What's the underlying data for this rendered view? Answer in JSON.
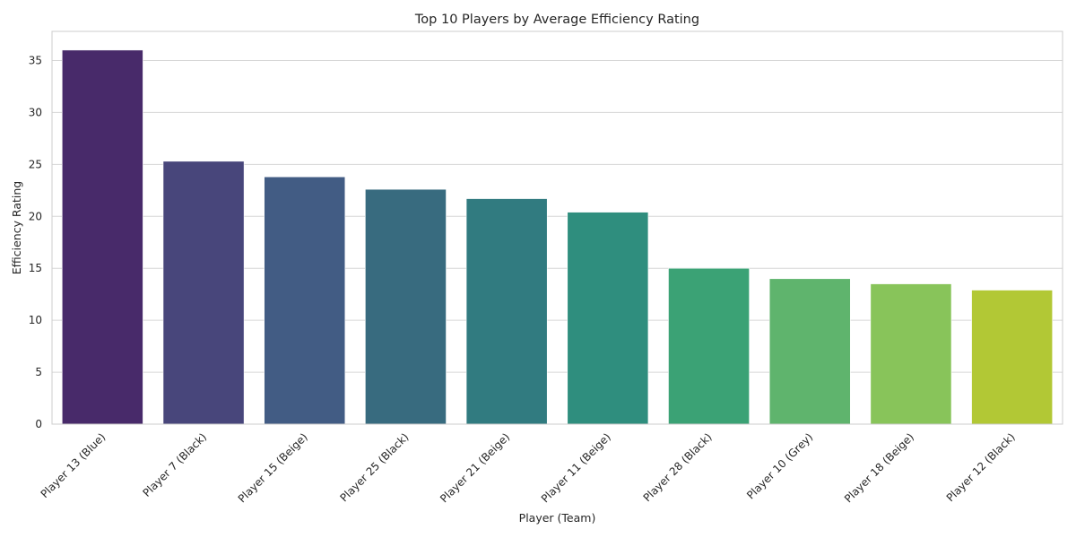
{
  "chart_data": {
    "type": "bar",
    "title": "Top 10 Players by Average Efficiency Rating",
    "xlabel": "Player (Team)",
    "ylabel": "Efficiency Rating",
    "categories": [
      "Player 13 (Blue)",
      "Player 7 (Black)",
      "Player 15 (Beige)",
      "Player 25 (Black)",
      "Player 21 (Beige)",
      "Player 11 (Beige)",
      "Player 28 (Black)",
      "Player 10 (Grey)",
      "Player 18 (Beige)",
      "Player 12 (Black)"
    ],
    "values": [
      36.0,
      25.3,
      23.8,
      22.6,
      21.7,
      20.4,
      15.0,
      14.0,
      13.5,
      12.9
    ],
    "colors": [
      "#482a6a",
      "#48467b",
      "#425c84",
      "#386b7f",
      "#317b80",
      "#2f8e7e",
      "#3ba275",
      "#5fb46d",
      "#88c45a",
      "#b2c835"
    ],
    "yticks": [
      0,
      5,
      10,
      15,
      20,
      25,
      30,
      35
    ],
    "ylim": [
      0,
      37.8
    ],
    "grid": "y",
    "legend": "none"
  }
}
